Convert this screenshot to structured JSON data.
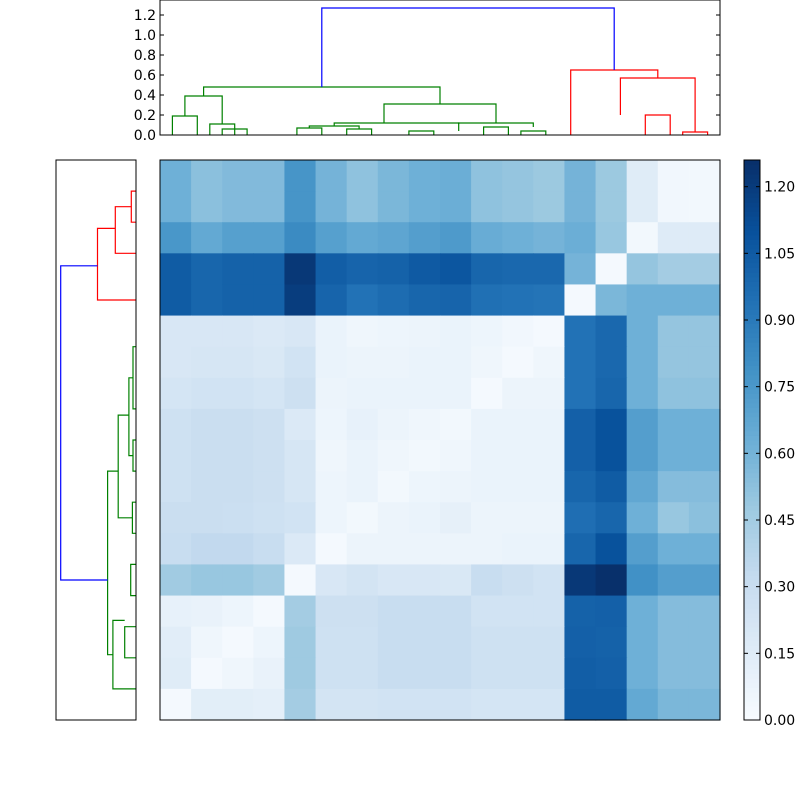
{
  "chart_data": [
    {
      "type": "heatmap",
      "title": "",
      "xlabel": "",
      "ylabel": "",
      "rows": 18,
      "cols": 18,
      "values": [
        [
          0.62,
          0.53,
          0.56,
          0.56,
          0.77,
          0.6,
          0.52,
          0.58,
          0.62,
          0.63,
          0.52,
          0.5,
          0.48,
          0.6,
          0.48,
          0.15,
          0.04,
          0.03
        ],
        [
          0.62,
          0.53,
          0.56,
          0.56,
          0.77,
          0.6,
          0.52,
          0.58,
          0.62,
          0.63,
          0.52,
          0.5,
          0.48,
          0.6,
          0.48,
          0.15,
          0.04,
          0.03
        ],
        [
          0.76,
          0.66,
          0.71,
          0.71,
          0.82,
          0.71,
          0.66,
          0.68,
          0.72,
          0.74,
          0.64,
          0.62,
          0.6,
          0.63,
          0.49,
          0.03,
          0.16,
          0.16
        ],
        [
          1.05,
          1.0,
          1.02,
          1.02,
          1.22,
          1.04,
          1.01,
          1.02,
          1.06,
          1.08,
          1.0,
          0.99,
          0.99,
          0.6,
          0.02,
          0.5,
          0.45,
          0.45
        ],
        [
          1.05,
          1.0,
          1.02,
          1.02,
          1.2,
          1.01,
          0.94,
          0.97,
          1.0,
          1.01,
          0.95,
          0.94,
          0.93,
          0.02,
          0.58,
          0.62,
          0.62,
          0.62
        ],
        [
          0.2,
          0.2,
          0.2,
          0.18,
          0.2,
          0.08,
          0.05,
          0.06,
          0.07,
          0.08,
          0.06,
          0.04,
          0.02,
          0.94,
          0.99,
          0.62,
          0.5,
          0.5
        ],
        [
          0.2,
          0.21,
          0.21,
          0.19,
          0.24,
          0.08,
          0.07,
          0.07,
          0.08,
          0.08,
          0.05,
          0.02,
          0.05,
          0.94,
          0.99,
          0.62,
          0.5,
          0.5
        ],
        [
          0.22,
          0.24,
          0.24,
          0.22,
          0.27,
          0.07,
          0.08,
          0.08,
          0.08,
          0.08,
          0.02,
          0.07,
          0.07,
          0.94,
          1.0,
          0.62,
          0.52,
          0.52
        ],
        [
          0.26,
          0.29,
          0.29,
          0.27,
          0.18,
          0.06,
          0.1,
          0.07,
          0.05,
          0.03,
          0.08,
          0.08,
          0.08,
          1.03,
          1.1,
          0.72,
          0.62,
          0.62
        ],
        [
          0.26,
          0.29,
          0.29,
          0.27,
          0.21,
          0.05,
          0.08,
          0.05,
          0.03,
          0.05,
          0.08,
          0.08,
          0.08,
          1.03,
          1.1,
          0.72,
          0.62,
          0.62
        ],
        [
          0.26,
          0.29,
          0.29,
          0.27,
          0.21,
          0.06,
          0.08,
          0.03,
          0.06,
          0.07,
          0.08,
          0.08,
          0.08,
          1.0,
          1.05,
          0.67,
          0.55,
          0.55
        ],
        [
          0.29,
          0.29,
          0.28,
          0.26,
          0.24,
          0.06,
          0.03,
          0.07,
          0.08,
          0.11,
          0.07,
          0.07,
          0.07,
          0.96,
          1.0,
          0.62,
          0.49,
          0.53
        ],
        [
          0.3,
          0.33,
          0.33,
          0.3,
          0.18,
          0.02,
          0.07,
          0.07,
          0.07,
          0.07,
          0.07,
          0.08,
          0.08,
          1.0,
          1.1,
          0.72,
          0.62,
          0.62
        ],
        [
          0.46,
          0.49,
          0.49,
          0.46,
          0.02,
          0.2,
          0.23,
          0.2,
          0.2,
          0.19,
          0.3,
          0.27,
          0.24,
          1.22,
          1.26,
          0.79,
          0.72,
          0.72
        ],
        [
          0.1,
          0.09,
          0.06,
          0.02,
          0.45,
          0.27,
          0.27,
          0.3,
          0.3,
          0.3,
          0.24,
          0.24,
          0.24,
          1.02,
          1.03,
          0.62,
          0.55,
          0.55
        ],
        [
          0.14,
          0.05,
          0.02,
          0.06,
          0.47,
          0.26,
          0.26,
          0.3,
          0.3,
          0.3,
          0.26,
          0.26,
          0.26,
          1.03,
          1.02,
          0.62,
          0.55,
          0.55
        ],
        [
          0.15,
          0.02,
          0.05,
          0.09,
          0.47,
          0.26,
          0.26,
          0.3,
          0.3,
          0.3,
          0.26,
          0.26,
          0.26,
          1.04,
          1.03,
          0.62,
          0.55,
          0.55
        ],
        [
          0.02,
          0.13,
          0.13,
          0.12,
          0.45,
          0.23,
          0.23,
          0.24,
          0.24,
          0.24,
          0.22,
          0.22,
          0.22,
          1.05,
          1.05,
          0.66,
          0.58,
          0.58
        ]
      ],
      "colorscale": "Blues",
      "vmin": 0,
      "vmax": 1.26,
      "colorbar_ticks": [
        "0.00",
        "0.15",
        "0.30",
        "0.45",
        "0.60",
        "0.75",
        "0.90",
        "1.05",
        "1.20"
      ],
      "grid": false
    },
    {
      "type": "dendrogram",
      "orientation": "top",
      "ylim": [
        0,
        1.35
      ],
      "yticks": [
        "0.0",
        "0.2",
        "0.4",
        "0.6",
        "0.8",
        "1.0",
        "1.2"
      ],
      "link_colors": [
        "#008000",
        "#ff0000",
        "#0000ff"
      ],
      "links": [
        {
          "x": [
            1,
            1,
            3,
            3
          ],
          "y": [
            0,
            0.19,
            0.19,
            0
          ],
          "color": "#008000"
        },
        {
          "x": [
            5,
            5,
            7,
            7
          ],
          "y": [
            0,
            0.06,
            0.06,
            0
          ],
          "color": "#008000"
        },
        {
          "x": [
            4,
            4,
            6,
            6
          ],
          "y": [
            0,
            0.11,
            0.11,
            0
          ],
          "color": "#008000"
        },
        {
          "x": [
            2,
            2,
            5,
            5
          ],
          "y": [
            0.19,
            0.39,
            0.39,
            0.11
          ],
          "color": "#008000"
        },
        {
          "x": [
            15,
            15,
            17,
            17
          ],
          "y": [
            0,
            0.06,
            0.06,
            0
          ],
          "color": "#008000"
        },
        {
          "x": [
            11,
            11,
            13,
            13
          ],
          "y": [
            0,
            0.07,
            0.07,
            0
          ],
          "color": "#008000"
        },
        {
          "x": [
            20,
            20,
            22,
            22
          ],
          "y": [
            0,
            0.04,
            0.04,
            0
          ],
          "color": "#008000"
        },
        {
          "x": [
            26,
            26,
            28,
            28
          ],
          "y": [
            0,
            0.08,
            0.08,
            0
          ],
          "color": "#008000"
        },
        {
          "x": [
            29,
            29,
            31,
            31
          ],
          "y": [
            0,
            0.04,
            0.04,
            0
          ],
          "color": "#008000"
        },
        {
          "x": [
            12,
            12,
            16,
            16
          ],
          "y": [
            0.07,
            0.09,
            0.09,
            0.06
          ],
          "color": "#008000"
        },
        {
          "x": [
            14,
            14,
            24,
            24
          ],
          "y": [
            0.09,
            0.12,
            0.12,
            0.04
          ],
          "color": "#008000"
        },
        {
          "x": [
            24,
            24,
            30,
            30
          ],
          "y": [
            0.11,
            0.12,
            0.12,
            0.08
          ],
          "color": "#008000"
        },
        {
          "x": [
            18,
            18,
            27,
            27
          ],
          "y": [
            0.12,
            0.31,
            0.31,
            0.12
          ],
          "color": "#008000"
        },
        {
          "x": [
            3.5,
            3.5,
            22.5,
            22.5
          ],
          "y": [
            0.39,
            0.48,
            0.48,
            0.31
          ],
          "color": "#008000"
        },
        {
          "x": [
            39,
            39,
            41,
            41
          ],
          "y": [
            0,
            0.2,
            0.2,
            0
          ],
          "color": "#ff0000"
        },
        {
          "x": [
            42,
            42,
            44,
            44
          ],
          "y": [
            0,
            0.03,
            0.03,
            0
          ],
          "color": "#ff0000"
        },
        {
          "x": [
            37,
            37,
            43,
            43
          ],
          "y": [
            0.2,
            0.57,
            0.57,
            0.03
          ],
          "color": "#ff0000"
        },
        {
          "x": [
            33,
            33,
            40,
            40
          ],
          "y": [
            0,
            0.65,
            0.65,
            0.57
          ],
          "color": "#ff0000"
        },
        {
          "x": [
            13,
            13,
            36.5,
            36.5
          ],
          "y": [
            0.48,
            1.27,
            1.27,
            0.65
          ],
          "color": "#0000ff"
        }
      ],
      "x_range": [
        0,
        45
      ]
    },
    {
      "type": "dendrogram",
      "orientation": "left",
      "x_range": [
        0,
        1.35
      ],
      "y_range": [
        0,
        18
      ],
      "link_colors": [
        "#008000",
        "#ff0000",
        "#0000ff"
      ],
      "links": [
        {
          "y": [
            1,
            1,
            2,
            2
          ],
          "x": [
            0,
            0.08,
            0.08,
            0
          ],
          "color": "#ff0000"
        },
        {
          "y": [
            1.5,
            1.5,
            3,
            3
          ],
          "x": [
            0.08,
            0.35,
            0.35,
            0
          ],
          "color": "#ff0000"
        },
        {
          "y": [
            2.2,
            2.2,
            4.5,
            4.5
          ],
          "x": [
            0.35,
            0.65,
            0.65,
            0
          ],
          "color": "#ff0000"
        },
        {
          "y": [
            6,
            6,
            8,
            8
          ],
          "x": [
            0,
            0.05,
            0.05,
            0
          ],
          "color": "#008000"
        },
        {
          "y": [
            9,
            9,
            10,
            10
          ],
          "x": [
            0,
            0.05,
            0.05,
            0
          ],
          "color": "#008000"
        },
        {
          "y": [
            7,
            7,
            9.5,
            9.5
          ],
          "x": [
            0.05,
            0.12,
            0.12,
            0.05
          ],
          "color": "#008000"
        },
        {
          "y": [
            11,
            11,
            12,
            12
          ],
          "x": [
            0,
            0.06,
            0.06,
            0
          ],
          "color": "#008000"
        },
        {
          "y": [
            8.2,
            8.2,
            11.5,
            11.5
          ],
          "x": [
            0.12,
            0.3,
            0.3,
            0.06
          ],
          "color": "#008000"
        },
        {
          "y": [
            13,
            13,
            14,
            14
          ],
          "x": [
            0,
            0.09,
            0.09,
            0
          ],
          "color": "#008000"
        },
        {
          "y": [
            15,
            15,
            16,
            16
          ],
          "x": [
            0,
            0.19,
            0.19,
            0
          ],
          "color": "#008000"
        },
        {
          "y": [
            14.8,
            14.8,
            17,
            17
          ],
          "x": [
            0.19,
            0.39,
            0.39,
            0
          ],
          "color": "#008000"
        },
        {
          "y": [
            10,
            10,
            15.9,
            15.9
          ],
          "x": [
            0.3,
            0.48,
            0.48,
            0.39
          ],
          "color": "#008000"
        },
        {
          "y": [
            3.4,
            3.4,
            13.5,
            13.5
          ],
          "x": [
            0.65,
            1.27,
            1.27,
            0.48
          ],
          "color": "#0000ff"
        }
      ]
    }
  ]
}
